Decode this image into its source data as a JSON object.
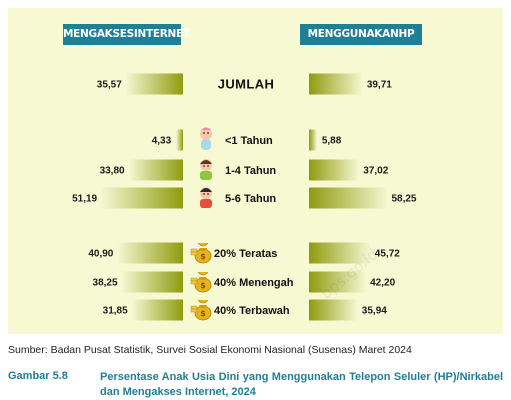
{
  "chart_data": {
    "type": "bar",
    "headers": {
      "left": "MENGAKSESINTERNET",
      "right": "MENGGUNAKANHP"
    },
    "categories": [
      "JUMLAH",
      "<1 Tahun",
      "1-4 Tahun",
      "5-6 Tahun",
      "20% Teratas",
      "40% Menengah",
      "40% Terbawah"
    ],
    "series": [
      {
        "values": [
          35.57,
          4.33,
          33.8,
          51.19,
          40.9,
          38.25,
          31.85
        ],
        "labels": [
          "35,57",
          "4,33",
          "33,80",
          "51,19",
          "40,90",
          "38,25",
          "31,85"
        ]
      },
      {
        "values": [
          39.71,
          5.88,
          37.02,
          58.25,
          45.72,
          42.2,
          35.94
        ],
        "labels": [
          "39,71",
          "5,88",
          "37,02",
          "58,25",
          "45,72",
          "42,20",
          "35,94"
        ]
      }
    ],
    "icons": [
      "",
      "baby-icon",
      "toddler-icon",
      "child-icon",
      "money-bag-icon",
      "money-bag-icon",
      "money-bag-icon"
    ],
    "colors": {
      "bar_dark": "#8f9b0f",
      "bar_light": "#f4f7cf",
      "header": "#1f7f96",
      "background": "#f7f9d2"
    }
  },
  "watermark": "bps.go.id",
  "source": "Sumber: Badan Pusat Statistik, Survei Sosial Ekonomi Nasional (Susenas) Maret 2024",
  "caption": {
    "number": "Gambar 5.8",
    "text": "Persentase Anak Usia Dini yang Menggunakan Telepon Seluler (HP)/Nirkabel dan Mengakses Internet, 2024"
  }
}
